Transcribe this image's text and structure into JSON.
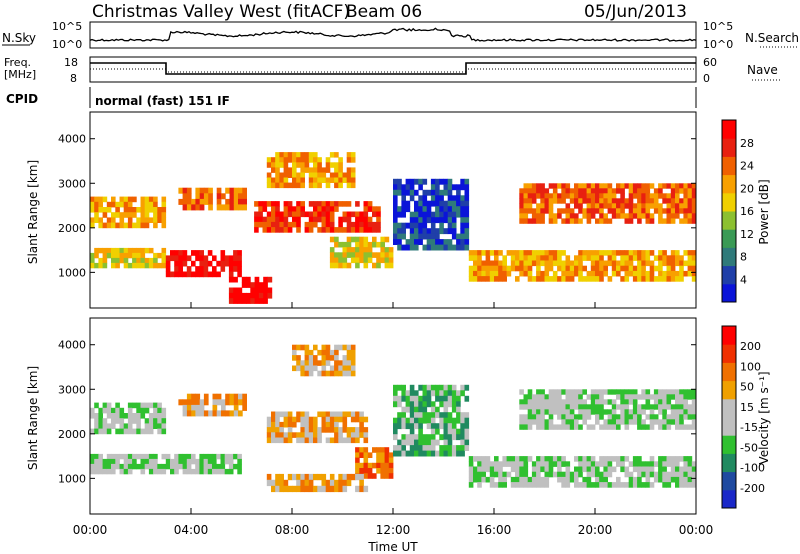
{
  "header": {
    "station": "Christmas Valley West (fitACF)",
    "beam": "Beam 06",
    "date": "05/Jun/2013"
  },
  "panels": {
    "nsky": {
      "label": "N.Sky",
      "left_ticks": [
        "10^5",
        "10^0"
      ],
      "right_label": "N.Search",
      "right_ticks": [
        "10^5",
        "10^0"
      ]
    },
    "freq": {
      "label_line1": "Freq.",
      "label_line2": "[MHz]",
      "left_ticks": [
        "18",
        "8"
      ],
      "right_label": "Nave",
      "right_ticks": [
        "60",
        "0"
      ]
    },
    "cpid": {
      "label": "CPID",
      "value": "normal (fast) 151 IF"
    }
  },
  "chart_data": [
    {
      "type": "heatmap",
      "name": "power",
      "ylabel": "Slant Range [km]",
      "yticks": [
        1000,
        2000,
        3000,
        4000
      ],
      "ylim": [
        200,
        4600
      ],
      "colorbar": {
        "label": "Power [dB]",
        "ticks": [
          "4",
          "8",
          "12",
          "16",
          "20",
          "24",
          "28"
        ],
        "colors": [
          "#0a14d8",
          "#1f3fa8",
          "#2f7a7a",
          "#3a9a55",
          "#8cc030",
          "#f0d000",
          "#f8a000",
          "#f06000",
          "#e82010",
          "#ff0000"
        ]
      },
      "bands": [
        {
          "t0": 0.0,
          "t1": 3.0,
          "r0": 2000,
          "r1": 2700,
          "level": 6
        },
        {
          "t0": 0.0,
          "t1": 3.0,
          "r0": 1100,
          "r1": 1550,
          "level": 5
        },
        {
          "t0": 3.0,
          "t1": 6.0,
          "r0": 900,
          "r1": 1500,
          "level": 9
        },
        {
          "t0": 3.5,
          "t1": 6.2,
          "r0": 2400,
          "r1": 2900,
          "level": 7
        },
        {
          "t0": 5.5,
          "t1": 7.2,
          "r0": 300,
          "r1": 900,
          "level": 9
        },
        {
          "t0": 6.5,
          "t1": 11.5,
          "r0": 1900,
          "r1": 2600,
          "level": 8
        },
        {
          "t0": 7.0,
          "t1": 10.5,
          "r0": 2900,
          "r1": 3700,
          "level": 6
        },
        {
          "t0": 9.5,
          "t1": 12.0,
          "r0": 1100,
          "r1": 1800,
          "level": 5
        },
        {
          "t0": 15.0,
          "t1": 24.0,
          "r0": 800,
          "r1": 1500,
          "level": 6
        },
        {
          "t0": 17.0,
          "t1": 24.0,
          "r0": 2100,
          "r1": 3000,
          "level": 7
        },
        {
          "t0": 12.0,
          "t1": 15.0,
          "r0": 1500,
          "r1": 3100,
          "level": 1
        }
      ]
    },
    {
      "type": "heatmap",
      "name": "velocity",
      "xlabel": "Time UT",
      "ylabel": "Slant Range [km]",
      "xticks": [
        "00:00",
        "04:00",
        "08:00",
        "12:00",
        "16:00",
        "20:00",
        "00:00"
      ],
      "yticks": [
        1000,
        2000,
        3000,
        4000
      ],
      "ylim": [
        200,
        4600
      ],
      "xlim": [
        0,
        24
      ],
      "colorbar": {
        "label": "Velocity [m s⁻¹]",
        "ticks": [
          "200",
          "100",
          "50",
          "15",
          "-15",
          "-50",
          "-100",
          "-200"
        ],
        "colors": [
          "#1a28c8",
          "#1f4aa0",
          "#208a60",
          "#30c030",
          "#c0c0c0",
          "#c0c0c0",
          "#f0a000",
          "#f07000",
          "#f03000",
          "#ff0000"
        ]
      },
      "bands": [
        {
          "t0": 0.0,
          "t1": 3.0,
          "r0": 2000,
          "r1": 2700,
          "level": 4
        },
        {
          "t0": 0.0,
          "t1": 6.0,
          "r0": 1100,
          "r1": 1550,
          "level": 4
        },
        {
          "t0": 3.5,
          "t1": 6.2,
          "r0": 2400,
          "r1": 2900,
          "level": 6
        },
        {
          "t0": 7.0,
          "t1": 11.0,
          "r0": 1800,
          "r1": 2500,
          "level": 6
        },
        {
          "t0": 8.0,
          "t1": 10.5,
          "r0": 3300,
          "r1": 4000,
          "level": 6
        },
        {
          "t0": 10.5,
          "t1": 12.0,
          "r0": 1000,
          "r1": 1700,
          "level": 7
        },
        {
          "t0": 7.0,
          "t1": 11.0,
          "r0": 700,
          "r1": 1100,
          "level": 6
        },
        {
          "t0": 12.0,
          "t1": 15.0,
          "r0": 1500,
          "r1": 3100,
          "level": 3
        },
        {
          "t0": 15.0,
          "t1": 24.0,
          "r0": 800,
          "r1": 1500,
          "level": 4
        },
        {
          "t0": 17.0,
          "t1": 24.0,
          "r0": 2100,
          "r1": 3000,
          "level": 4
        }
      ]
    }
  ]
}
